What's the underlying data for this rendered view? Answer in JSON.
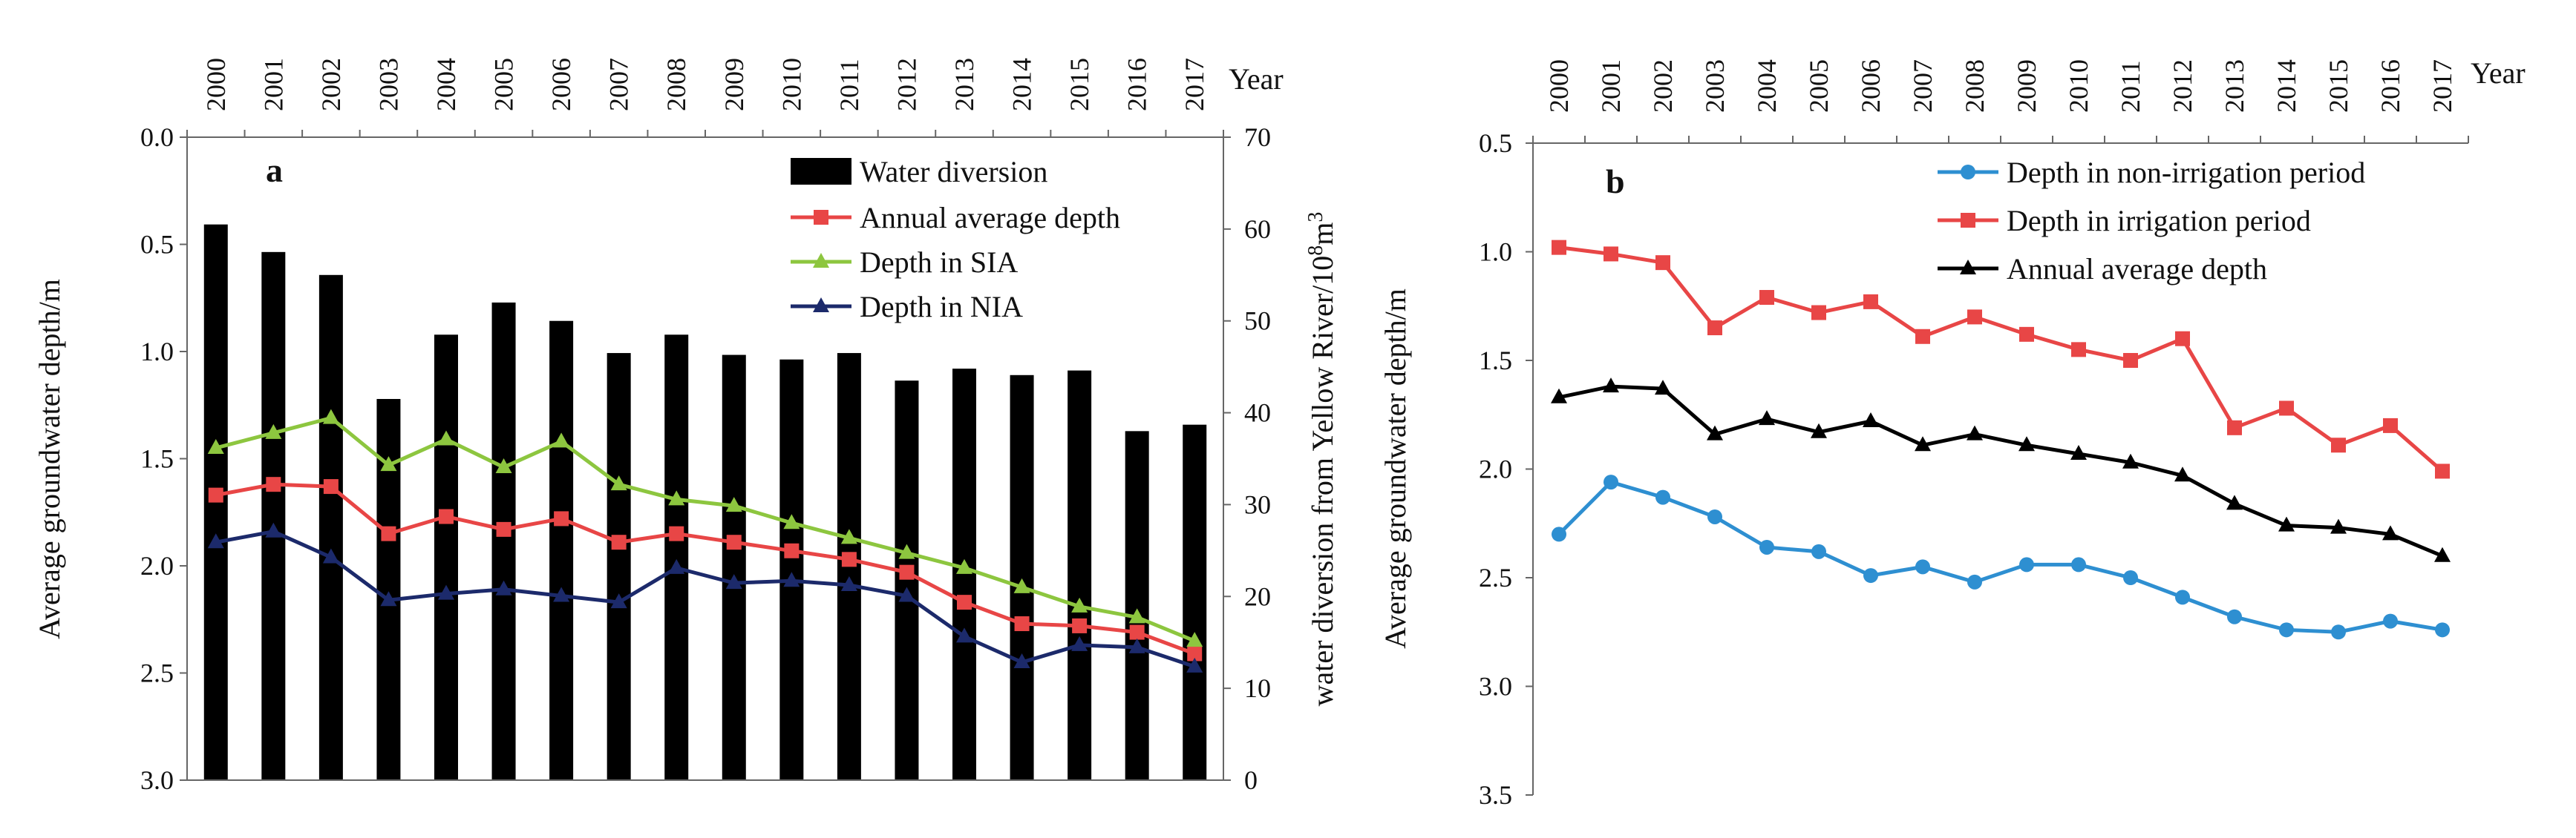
{
  "chart_data": [
    {
      "panel": "a",
      "type": "bar+line",
      "years": [
        "2000",
        "2001",
        "2002",
        "2003",
        "2004",
        "2005",
        "2006",
        "2007",
        "2008",
        "2009",
        "2010",
        "2011",
        "2012",
        "2013",
        "2014",
        "2015",
        "2016",
        "2017"
      ],
      "year_label": "Year",
      "y_left_label": "Average groundwater  depth/m",
      "y_right_label_main": "water diversion from Yellow River/10",
      "y_right_label_sup": "8",
      "y_right_label_end": "m",
      "y_right_label_sup2": "3",
      "y_left_ticks": [
        "0.0",
        "0.5",
        "1.0",
        "1.5",
        "2.0",
        "2.5",
        "3.0"
      ],
      "y_left_lim": [
        0,
        3.0
      ],
      "y_left_inverted": true,
      "y_right_ticks": [
        "0",
        "10",
        "20",
        "30",
        "40",
        "50",
        "60",
        "70"
      ],
      "y_right_lim": [
        0,
        70
      ],
      "bars": {
        "name": "Water diversion",
        "values": [
          60.5,
          57.5,
          55.0,
          41.5,
          48.5,
          52.0,
          50.0,
          46.5,
          48.5,
          46.3,
          45.8,
          46.5,
          43.5,
          44.8,
          44.1,
          44.6,
          38.0,
          38.7
        ]
      },
      "series": [
        {
          "name": "Annual average depth",
          "color": "#e84646",
          "marker": "square",
          "values": [
            1.67,
            1.62,
            1.63,
            1.85,
            1.77,
            1.83,
            1.78,
            1.89,
            1.85,
            1.89,
            1.93,
            1.97,
            2.03,
            2.17,
            2.27,
            2.28,
            2.31,
            2.41
          ]
        },
        {
          "name": "Depth in SIA",
          "color": "#8dc63f",
          "marker": "triangle",
          "values": [
            1.45,
            1.38,
            1.31,
            1.53,
            1.41,
            1.54,
            1.42,
            1.62,
            1.69,
            1.72,
            1.8,
            1.87,
            1.94,
            2.01,
            2.1,
            2.19,
            2.24,
            2.35
          ]
        },
        {
          "name": "Depth in NIA",
          "color": "#1c2a6b",
          "marker": "triangle",
          "values": [
            1.89,
            1.84,
            1.96,
            2.16,
            2.13,
            2.11,
            2.14,
            2.17,
            2.01,
            2.08,
            2.07,
            2.09,
            2.14,
            2.33,
            2.45,
            2.37,
            2.38,
            2.47
          ]
        }
      ],
      "legend_entries": [
        "Water diversion",
        "Annual average depth",
        "Depth in SIA",
        "Depth in NIA"
      ],
      "panel_tag": "a"
    },
    {
      "panel": "b",
      "type": "line",
      "years": [
        "2000",
        "2001",
        "2002",
        "2003",
        "2004",
        "2005",
        "2006",
        "2007",
        "2008",
        "2009",
        "2010",
        "2011",
        "2012",
        "2013",
        "2014",
        "2015",
        "2016",
        "2017"
      ],
      "year_label": "Year",
      "y_label": "Average  groundwater  depth/m",
      "y_ticks": [
        "0.5",
        "1.0",
        "1.5",
        "2.0",
        "2.5",
        "3.0",
        "3.5"
      ],
      "y_lim": [
        0.5,
        3.5
      ],
      "y_inverted": true,
      "series": [
        {
          "name": "Depth in non-irrigation period",
          "color": "#2e8fd1",
          "marker": "circle",
          "values": [
            2.3,
            2.06,
            2.13,
            2.22,
            2.36,
            2.38,
            2.49,
            2.45,
            2.52,
            2.44,
            2.44,
            2.5,
            2.59,
            2.68,
            2.74,
            2.75,
            2.7,
            2.74
          ]
        },
        {
          "name": "Depth in irrigation period",
          "color": "#e84646",
          "marker": "square",
          "values": [
            0.98,
            1.01,
            1.05,
            1.35,
            1.21,
            1.28,
            1.23,
            1.39,
            1.3,
            1.38,
            1.45,
            1.5,
            1.4,
            1.81,
            1.72,
            1.89,
            1.8,
            2.01
          ]
        },
        {
          "name": "Annual average depth",
          "color": "#000000",
          "marker": "triangle",
          "values": [
            1.67,
            1.62,
            1.63,
            1.84,
            1.77,
            1.83,
            1.78,
            1.89,
            1.84,
            1.89,
            1.93,
            1.97,
            2.03,
            2.16,
            2.26,
            2.27,
            2.3,
            2.4
          ]
        }
      ],
      "legend_entries": [
        "Depth in non-irrigation period",
        "Depth in irrigation period",
        "Annual average depth"
      ],
      "panel_tag": "b"
    }
  ]
}
